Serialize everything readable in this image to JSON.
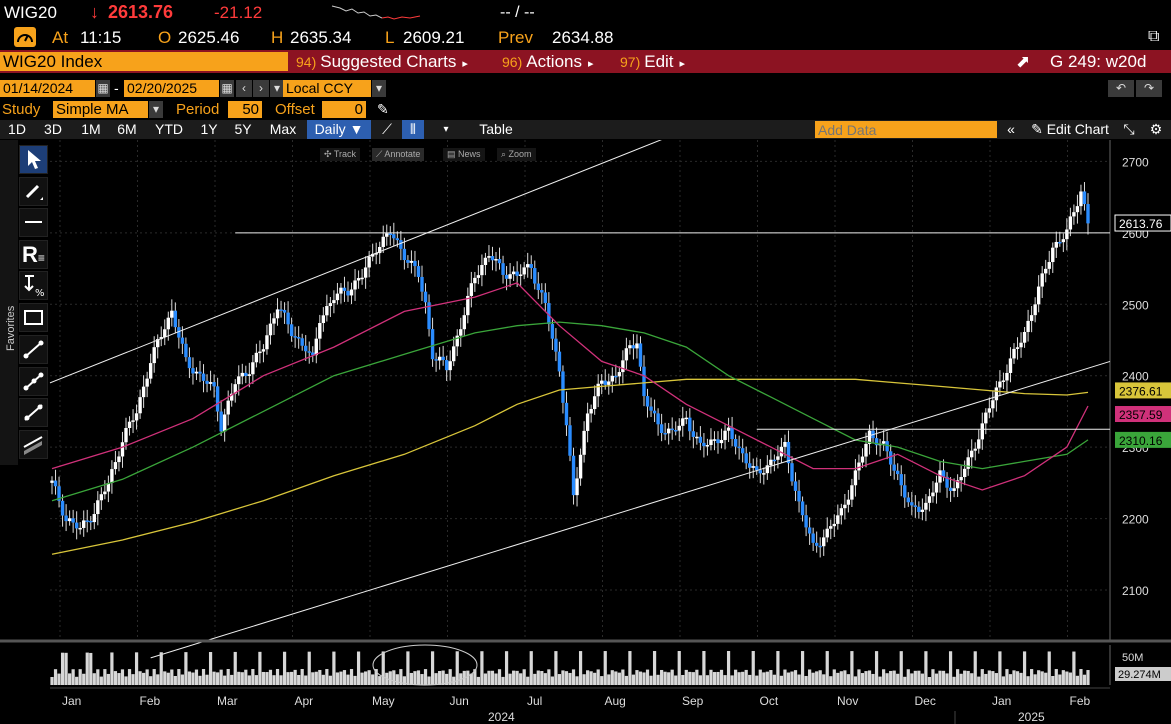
{
  "ticker": {
    "symbol": "WIG20",
    "arrow": "↓",
    "last": "2613.76",
    "change": "-21.12",
    "tail": "-- / --"
  },
  "quote": {
    "at_label": "At",
    "time": "11:15",
    "o_label": "O",
    "open": "2625.46",
    "h_label": "H",
    "high": "2635.34",
    "l_label": "L",
    "low": "2609.21",
    "prev_label": "Prev",
    "prev": "2634.88"
  },
  "menubar": {
    "security": "WIG20 Index",
    "suggested_num": "94)",
    "suggested": "Suggested Charts",
    "actions_num": "96)",
    "actions": "Actions",
    "edit_num": "97)",
    "edit": "Edit",
    "g_label": "G 249: w20d"
  },
  "dates": {
    "start": "01/14/2024",
    "sep": "-",
    "end": "02/20/2025",
    "currency": "Local CCY"
  },
  "study": {
    "label": "Study",
    "type": "Simple MA",
    "period_label": "Period",
    "period": "50",
    "offset_label": "Offset",
    "offset": "0"
  },
  "toolbar": {
    "ranges": [
      "1D",
      "3D",
      "1M",
      "6M",
      "YTD",
      "1Y",
      "5Y",
      "Max"
    ],
    "frequency": "Daily ▼",
    "table": "Table",
    "add_data_placeholder": "Add Data",
    "edit_chart": "Edit Chart"
  },
  "nav": {
    "track": "Track",
    "annotate": "Annotate",
    "news": "News",
    "zoom": "Zoom"
  },
  "favorites_label": "Favorites",
  "colors": {
    "accent": "#f7a21b",
    "menubar": "#8c1322",
    "candle": "#2a8cff",
    "ma_red": "#d0317a",
    "ma_green": "#3aa53a",
    "ma_yellow": "#d8c53a"
  },
  "chart_data": {
    "type": "candlestick",
    "y_ticks": [
      2100,
      2200,
      2300,
      2400,
      2500,
      2600,
      2700
    ],
    "ylim": [
      2030,
      2730
    ],
    "month_labels": [
      "Jan",
      "Feb",
      "Mar",
      "Apr",
      "May",
      "Jun",
      "Jul",
      "Aug",
      "Sep",
      "Oct",
      "Nov",
      "Dec",
      "Jan",
      "Feb"
    ],
    "year_labels": [
      "2024",
      "2025"
    ],
    "last_price_label": "2613.76",
    "ma_labels": [
      {
        "value": "2376.61",
        "color": "#d8c53a",
        "level": 2376.61
      },
      {
        "value": "2357.59",
        "color": "#d0317a",
        "level": 2357.59
      },
      {
        "value": "2310.16",
        "color": "#3aa53a",
        "level": 2310.16
      }
    ],
    "volume_tick": "50M",
    "volume_last": "29.274M",
    "price_path": [
      [
        0,
        2250
      ],
      [
        2,
        2200
      ],
      [
        4,
        2185
      ],
      [
        6,
        2210
      ],
      [
        8,
        2250
      ],
      [
        10,
        2310
      ],
      [
        12,
        2350
      ],
      [
        14,
        2420
      ],
      [
        16,
        2470
      ],
      [
        17,
        2490
      ],
      [
        19,
        2420
      ],
      [
        21,
        2400
      ],
      [
        23,
        2380
      ],
      [
        24,
        2330
      ],
      [
        26,
        2390
      ],
      [
        28,
        2410
      ],
      [
        30,
        2440
      ],
      [
        32,
        2500
      ],
      [
        34,
        2460
      ],
      [
        36,
        2440
      ],
      [
        37,
        2420
      ],
      [
        38,
        2480
      ],
      [
        40,
        2510
      ],
      [
        42,
        2520
      ],
      [
        44,
        2540
      ],
      [
        46,
        2580
      ],
      [
        48,
        2600
      ],
      [
        50,
        2570
      ],
      [
        52,
        2540
      ],
      [
        53,
        2500
      ],
      [
        54,
        2430
      ],
      [
        56,
        2410
      ],
      [
        58,
        2470
      ],
      [
        60,
        2540
      ],
      [
        62,
        2570
      ],
      [
        64,
        2545
      ],
      [
        66,
        2540
      ],
      [
        68,
        2555
      ],
      [
        69,
        2520
      ],
      [
        70,
        2500
      ],
      [
        71,
        2450
      ],
      [
        72,
        2410
      ],
      [
        73,
        2330
      ],
      [
        74,
        2230
      ],
      [
        75,
        2290
      ],
      [
        76,
        2350
      ],
      [
        78,
        2390
      ],
      [
        80,
        2400
      ],
      [
        82,
        2440
      ],
      [
        83,
        2450
      ],
      [
        84,
        2370
      ],
      [
        86,
        2330
      ],
      [
        88,
        2320
      ],
      [
        90,
        2340
      ],
      [
        92,
        2300
      ],
      [
        94,
        2310
      ],
      [
        96,
        2320
      ],
      [
        98,
        2290
      ],
      [
        100,
        2260
      ],
      [
        102,
        2280
      ],
      [
        104,
        2300
      ],
      [
        106,
        2220
      ],
      [
        108,
        2160
      ],
      [
        110,
        2180
      ],
      [
        112,
        2210
      ],
      [
        114,
        2260
      ],
      [
        116,
        2320
      ],
      [
        118,
        2300
      ],
      [
        120,
        2260
      ],
      [
        122,
        2210
      ],
      [
        124,
        2220
      ],
      [
        126,
        2260
      ],
      [
        128,
        2240
      ],
      [
        130,
        2280
      ],
      [
        132,
        2330
      ],
      [
        134,
        2380
      ],
      [
        136,
        2420
      ],
      [
        138,
        2460
      ],
      [
        140,
        2520
      ],
      [
        142,
        2580
      ],
      [
        144,
        2600
      ],
      [
        146,
        2660
      ],
      [
        147,
        2613.76
      ]
    ],
    "ma50_path": [
      [
        0,
        2270
      ],
      [
        10,
        2300
      ],
      [
        20,
        2340
      ],
      [
        30,
        2400
      ],
      [
        40,
        2440
      ],
      [
        50,
        2490
      ],
      [
        60,
        2510
      ],
      [
        66,
        2530
      ],
      [
        72,
        2470
      ],
      [
        78,
        2420
      ],
      [
        84,
        2400
      ],
      [
        90,
        2360
      ],
      [
        96,
        2330
      ],
      [
        102,
        2300
      ],
      [
        108,
        2270
      ],
      [
        114,
        2270
      ],
      [
        120,
        2290
      ],
      [
        126,
        2260
      ],
      [
        132,
        2240
      ],
      [
        138,
        2260
      ],
      [
        144,
        2300
      ],
      [
        147,
        2357.59
      ]
    ],
    "ma100_path": [
      [
        0,
        2225
      ],
      [
        10,
        2255
      ],
      [
        20,
        2300
      ],
      [
        30,
        2350
      ],
      [
        40,
        2400
      ],
      [
        50,
        2430
      ],
      [
        60,
        2460
      ],
      [
        66,
        2470
      ],
      [
        72,
        2475
      ],
      [
        78,
        2470
      ],
      [
        84,
        2460
      ],
      [
        90,
        2440
      ],
      [
        96,
        2400
      ],
      [
        102,
        2370
      ],
      [
        108,
        2340
      ],
      [
        114,
        2310
      ],
      [
        120,
        2300
      ],
      [
        126,
        2280
      ],
      [
        132,
        2270
      ],
      [
        138,
        2280
      ],
      [
        144,
        2290
      ],
      [
        147,
        2310.16
      ]
    ],
    "ma200_path": [
      [
        0,
        2150
      ],
      [
        10,
        2170
      ],
      [
        20,
        2195
      ],
      [
        30,
        2225
      ],
      [
        40,
        2260
      ],
      [
        50,
        2290
      ],
      [
        60,
        2330
      ],
      [
        66,
        2360
      ],
      [
        72,
        2380
      ],
      [
        78,
        2385
      ],
      [
        84,
        2390
      ],
      [
        90,
        2395
      ],
      [
        96,
        2395
      ],
      [
        102,
        2395
      ],
      [
        108,
        2395
      ],
      [
        114,
        2395
      ],
      [
        120,
        2390
      ],
      [
        126,
        2385
      ],
      [
        132,
        2380
      ],
      [
        138,
        2375
      ],
      [
        144,
        2373
      ],
      [
        147,
        2376.61
      ]
    ]
  }
}
